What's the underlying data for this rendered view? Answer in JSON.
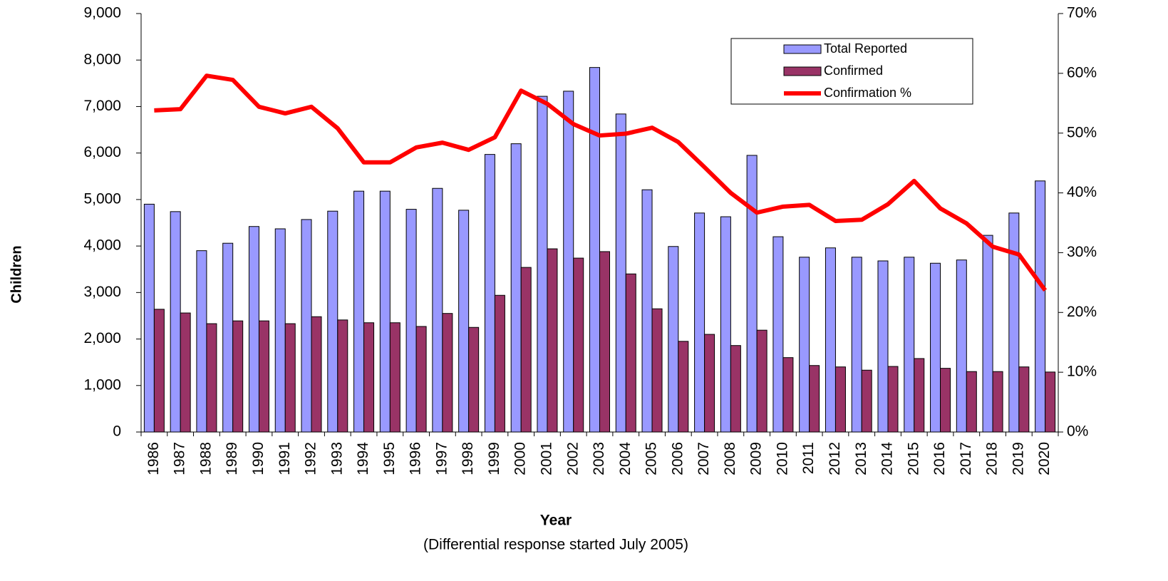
{
  "chart_data": {
    "type": "bar-line",
    "y_label": "Children",
    "x_label": "Year",
    "subtitle": "(Differential response started July 2005)",
    "categories": [
      "1986",
      "1987",
      "1988",
      "1989",
      "1990",
      "1991",
      "1992",
      "1993",
      "1994",
      "1995",
      "1996",
      "1997",
      "1998",
      "1999",
      "2000",
      "2001",
      "2002",
      "2003",
      "2004",
      "2005",
      "2006",
      "2007",
      "2008",
      "2009",
      "2010",
      "2011",
      "2012",
      "2013",
      "2014",
      "2015",
      "2016",
      "2017",
      "2018",
      "2019",
      "2020"
    ],
    "series": [
      {
        "name": "Total Reported",
        "type": "bar",
        "color": "#9999ff",
        "values": [
          4900,
          4740,
          3900,
          4060,
          4420,
          4370,
          4570,
          4750,
          5180,
          5180,
          4790,
          5240,
          4770,
          5970,
          6200,
          7220,
          7330,
          7840,
          6840,
          5210,
          3990,
          4710,
          4630,
          5950,
          4200,
          3760,
          3960,
          3760,
          3680,
          3760,
          3630,
          3700,
          4230,
          4710,
          5400
        ]
      },
      {
        "name": "Confirmed",
        "type": "bar",
        "color": "#993366",
        "values": [
          2640,
          2560,
          2330,
          2390,
          2390,
          2330,
          2480,
          2410,
          2350,
          2350,
          2270,
          2550,
          2250,
          2940,
          3540,
          3940,
          3740,
          3880,
          3400,
          2650,
          1950,
          2100,
          1860,
          2190,
          1600,
          1430,
          1400,
          1330,
          1410,
          1580,
          1370,
          1300,
          1300,
          1400,
          1290
        ]
      },
      {
        "name": "Confirmation %",
        "type": "line",
        "axis": "y2",
        "color": "#ff0000",
        "values": [
          53.8,
          54.0,
          59.6,
          58.9,
          54.4,
          53.3,
          54.4,
          50.8,
          45.1,
          45.1,
          47.6,
          48.4,
          47.2,
          49.3,
          57.1,
          54.9,
          51.5,
          49.6,
          49.9,
          50.9,
          48.5,
          44.3,
          40.0,
          36.7,
          37.7,
          38.0,
          35.3,
          35.5,
          38.1,
          42.0,
          37.4,
          34.9,
          31.0,
          29.7,
          23.7
        ]
      }
    ],
    "ylim": [
      0,
      9000
    ],
    "yticks": [
      0,
      {
        "value": 1000,
        "label": "1,000"
      },
      {
        "value": 2000,
        "label": "2,000"
      },
      {
        "value": 3000,
        "label": "3,000"
      },
      {
        "value": 4000,
        "label": "4,000"
      },
      {
        "value": 5000,
        "label": "5,000"
      },
      {
        "value": 6000,
        "label": "6,000"
      },
      {
        "value": 7000,
        "label": "7,000"
      },
      {
        "value": 8000,
        "label": "8,000"
      },
      {
        "value": 9000,
        "label": "9,000"
      }
    ],
    "y2lim": [
      0,
      70
    ],
    "y2ticks": [
      {
        "value": 0,
        "label": "0%"
      },
      {
        "value": 10,
        "label": "10%"
      },
      {
        "value": 20,
        "label": "20%"
      },
      {
        "value": 30,
        "label": "30%"
      },
      {
        "value": 40,
        "label": "40%"
      },
      {
        "value": 50,
        "label": "50%"
      },
      {
        "value": 60,
        "label": "60%"
      },
      {
        "value": 70,
        "label": "70%"
      }
    ],
    "y2_color": "#ff0000",
    "grid": false,
    "legend": "top-right"
  }
}
